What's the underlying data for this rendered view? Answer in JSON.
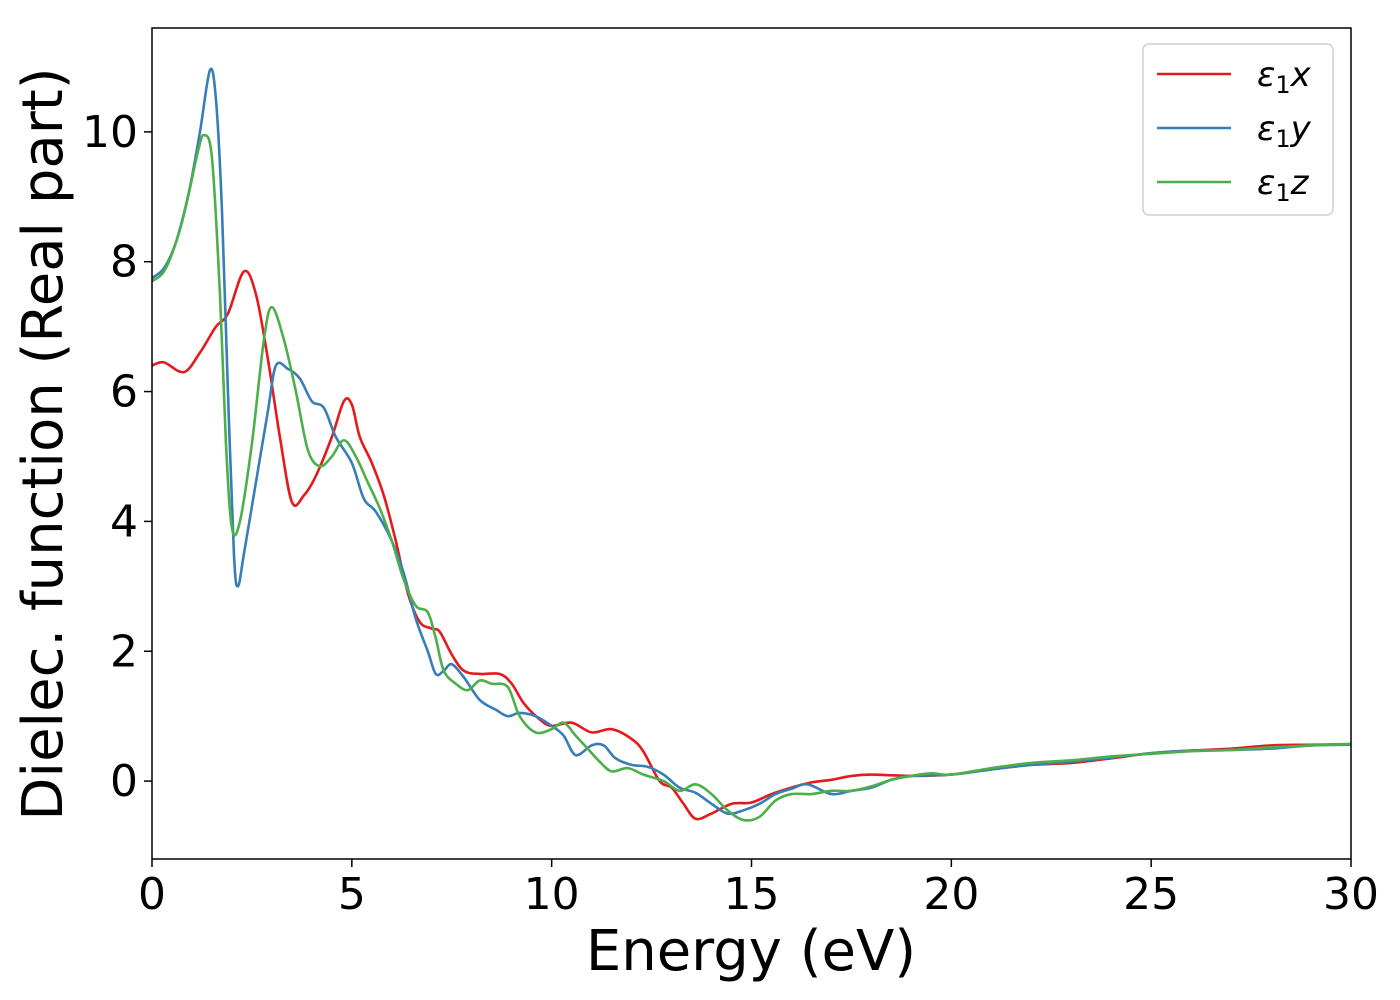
{
  "chart_data": {
    "type": "line",
    "title": "",
    "xlabel": "Energy (eV)",
    "ylabel": "Dielec. function (Real part)",
    "xlim": [
      0,
      30
    ],
    "ylim": [
      -1.2,
      11.6
    ],
    "xticks": [
      0,
      5,
      10,
      15,
      20,
      25,
      30
    ],
    "yticks": [
      0,
      2,
      4,
      6,
      8,
      10
    ],
    "grid": false,
    "legend": "top-right",
    "series": [
      {
        "name": "ε₁x",
        "legend_main": "ε",
        "legend_sub": "1",
        "legend_tail": "x",
        "color": "#e41a1c",
        "points": [
          [
            0,
            6.4
          ],
          [
            0.3,
            6.45
          ],
          [
            0.8,
            6.3
          ],
          [
            1.2,
            6.6
          ],
          [
            1.6,
            7.0
          ],
          [
            1.9,
            7.2
          ],
          [
            2.3,
            7.85
          ],
          [
            2.6,
            7.5
          ],
          [
            2.9,
            6.5
          ],
          [
            3.2,
            5.3
          ],
          [
            3.5,
            4.3
          ],
          [
            3.8,
            4.4
          ],
          [
            4.1,
            4.7
          ],
          [
            4.5,
            5.3
          ],
          [
            4.8,
            5.85
          ],
          [
            5.0,
            5.8
          ],
          [
            5.2,
            5.3
          ],
          [
            5.5,
            4.9
          ],
          [
            5.8,
            4.4
          ],
          [
            6.1,
            3.7
          ],
          [
            6.4,
            2.9
          ],
          [
            6.7,
            2.45
          ],
          [
            7.0,
            2.35
          ],
          [
            7.2,
            2.3
          ],
          [
            7.5,
            1.95
          ],
          [
            7.8,
            1.7
          ],
          [
            8.2,
            1.65
          ],
          [
            8.7,
            1.65
          ],
          [
            9.0,
            1.5
          ],
          [
            9.3,
            1.2
          ],
          [
            9.7,
            0.95
          ],
          [
            10.0,
            0.85
          ],
          [
            10.5,
            0.9
          ],
          [
            11.0,
            0.75
          ],
          [
            11.5,
            0.8
          ],
          [
            12.0,
            0.65
          ],
          [
            12.3,
            0.45
          ],
          [
            12.7,
            0.0
          ],
          [
            13.0,
            -0.1
          ],
          [
            13.3,
            -0.35
          ],
          [
            13.6,
            -0.58
          ],
          [
            14.0,
            -0.5
          ],
          [
            14.5,
            -0.35
          ],
          [
            15.0,
            -0.33
          ],
          [
            15.5,
            -0.2
          ],
          [
            16.0,
            -0.1
          ],
          [
            16.5,
            -0.02
          ],
          [
            17.0,
            0.02
          ],
          [
            17.5,
            0.08
          ],
          [
            18.0,
            0.1
          ],
          [
            19.0,
            0.08
          ],
          [
            20.0,
            0.1
          ],
          [
            21.0,
            0.18
          ],
          [
            22.0,
            0.25
          ],
          [
            23.0,
            0.28
          ],
          [
            24.0,
            0.35
          ],
          [
            25.0,
            0.43
          ],
          [
            26.0,
            0.47
          ],
          [
            27.0,
            0.5
          ],
          [
            28.0,
            0.55
          ],
          [
            29.0,
            0.56
          ],
          [
            30.0,
            0.57
          ]
        ]
      },
      {
        "name": "ε₁y",
        "legend_main": "ε",
        "legend_sub": "1",
        "legend_tail": "y",
        "color": "#377eb8",
        "points": [
          [
            0,
            7.75
          ],
          [
            0.3,
            7.9
          ],
          [
            0.6,
            8.3
          ],
          [
            0.9,
            9.0
          ],
          [
            1.2,
            10.0
          ],
          [
            1.45,
            10.95
          ],
          [
            1.6,
            10.5
          ],
          [
            1.75,
            8.8
          ],
          [
            1.9,
            6.0
          ],
          [
            2.05,
            3.5
          ],
          [
            2.15,
            3.0
          ],
          [
            2.3,
            3.5
          ],
          [
            2.6,
            4.6
          ],
          [
            2.9,
            5.7
          ],
          [
            3.1,
            6.4
          ],
          [
            3.4,
            6.35
          ],
          [
            3.7,
            6.2
          ],
          [
            4.0,
            5.85
          ],
          [
            4.3,
            5.75
          ],
          [
            4.6,
            5.3
          ],
          [
            5.0,
            4.9
          ],
          [
            5.3,
            4.35
          ],
          [
            5.6,
            4.15
          ],
          [
            6.0,
            3.7
          ],
          [
            6.3,
            3.2
          ],
          [
            6.6,
            2.5
          ],
          [
            6.9,
            2.0
          ],
          [
            7.1,
            1.65
          ],
          [
            7.3,
            1.7
          ],
          [
            7.5,
            1.8
          ],
          [
            7.8,
            1.6
          ],
          [
            8.2,
            1.25
          ],
          [
            8.6,
            1.1
          ],
          [
            8.9,
            1.0
          ],
          [
            9.2,
            1.05
          ],
          [
            9.6,
            1.0
          ],
          [
            10.0,
            0.85
          ],
          [
            10.3,
            0.7
          ],
          [
            10.6,
            0.4
          ],
          [
            11.0,
            0.55
          ],
          [
            11.3,
            0.55
          ],
          [
            11.6,
            0.35
          ],
          [
            12.0,
            0.25
          ],
          [
            12.4,
            0.22
          ],
          [
            12.8,
            0.1
          ],
          [
            13.2,
            -0.1
          ],
          [
            13.6,
            -0.18
          ],
          [
            14.0,
            -0.35
          ],
          [
            14.4,
            -0.5
          ],
          [
            14.8,
            -0.45
          ],
          [
            15.2,
            -0.35
          ],
          [
            15.6,
            -0.2
          ],
          [
            16.0,
            -0.12
          ],
          [
            16.4,
            -0.05
          ],
          [
            17.0,
            -0.2
          ],
          [
            17.5,
            -0.15
          ],
          [
            18.0,
            -0.1
          ],
          [
            18.5,
            0.02
          ],
          [
            19.0,
            0.08
          ],
          [
            20.0,
            0.1
          ],
          [
            21.0,
            0.18
          ],
          [
            22.0,
            0.25
          ],
          [
            23.0,
            0.3
          ],
          [
            24.0,
            0.36
          ],
          [
            25.0,
            0.43
          ],
          [
            26.0,
            0.47
          ],
          [
            27.0,
            0.48
          ],
          [
            28.0,
            0.5
          ],
          [
            29.0,
            0.55
          ],
          [
            30.0,
            0.56
          ]
        ]
      },
      {
        "name": "ε₁z",
        "legend_main": "ε",
        "legend_sub": "1",
        "legend_tail": "z",
        "color": "#4daf4a",
        "points": [
          [
            0,
            7.7
          ],
          [
            0.3,
            7.85
          ],
          [
            0.6,
            8.3
          ],
          [
            0.9,
            9.0
          ],
          [
            1.15,
            9.7
          ],
          [
            1.3,
            9.95
          ],
          [
            1.5,
            9.6
          ],
          [
            1.7,
            7.5
          ],
          [
            1.85,
            5.2
          ],
          [
            2.0,
            3.9
          ],
          [
            2.2,
            4.0
          ],
          [
            2.5,
            5.2
          ],
          [
            2.8,
            6.8
          ],
          [
            3.0,
            7.3
          ],
          [
            3.3,
            6.8
          ],
          [
            3.6,
            6.0
          ],
          [
            3.9,
            5.1
          ],
          [
            4.2,
            4.85
          ],
          [
            4.5,
            5.0
          ],
          [
            4.8,
            5.25
          ],
          [
            5.1,
            5.0
          ],
          [
            5.4,
            4.6
          ],
          [
            5.7,
            4.2
          ],
          [
            6.0,
            3.7
          ],
          [
            6.3,
            3.1
          ],
          [
            6.6,
            2.7
          ],
          [
            6.9,
            2.6
          ],
          [
            7.1,
            2.2
          ],
          [
            7.3,
            1.7
          ],
          [
            7.6,
            1.5
          ],
          [
            7.9,
            1.4
          ],
          [
            8.2,
            1.55
          ],
          [
            8.5,
            1.5
          ],
          [
            8.9,
            1.45
          ],
          [
            9.2,
            1.0
          ],
          [
            9.6,
            0.75
          ],
          [
            10.0,
            0.8
          ],
          [
            10.3,
            0.9
          ],
          [
            10.6,
            0.7
          ],
          [
            10.9,
            0.5
          ],
          [
            11.2,
            0.3
          ],
          [
            11.5,
            0.15
          ],
          [
            11.9,
            0.2
          ],
          [
            12.3,
            0.1
          ],
          [
            12.8,
            0.0
          ],
          [
            13.2,
            -0.15
          ],
          [
            13.6,
            -0.05
          ],
          [
            14.0,
            -0.2
          ],
          [
            14.4,
            -0.45
          ],
          [
            14.8,
            -0.6
          ],
          [
            15.2,
            -0.55
          ],
          [
            15.6,
            -0.3
          ],
          [
            16.0,
            -0.2
          ],
          [
            16.5,
            -0.2
          ],
          [
            17.0,
            -0.15
          ],
          [
            17.5,
            -0.15
          ],
          [
            18.0,
            -0.08
          ],
          [
            18.5,
            0.02
          ],
          [
            19.0,
            0.08
          ],
          [
            19.5,
            0.12
          ],
          [
            20.0,
            0.1
          ],
          [
            21.0,
            0.2
          ],
          [
            22.0,
            0.28
          ],
          [
            23.0,
            0.32
          ],
          [
            24.0,
            0.38
          ],
          [
            25.0,
            0.42
          ],
          [
            26.0,
            0.46
          ],
          [
            27.0,
            0.48
          ],
          [
            28.0,
            0.52
          ],
          [
            29.0,
            0.55
          ],
          [
            30.0,
            0.57
          ]
        ]
      }
    ]
  }
}
